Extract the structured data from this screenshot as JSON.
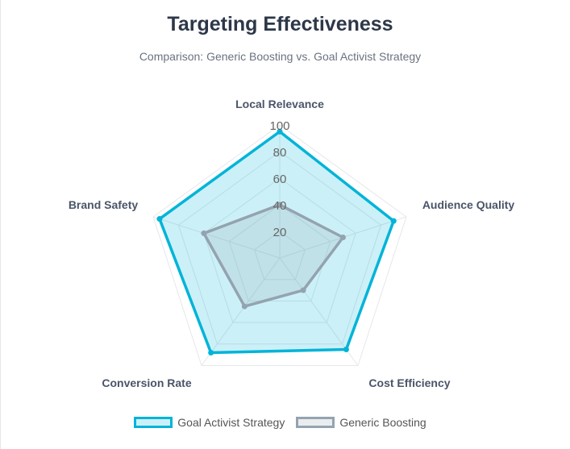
{
  "chart_data": {
    "type": "radar",
    "title": "Targeting Effectiveness",
    "subtitle": "Comparison: Generic Boosting vs. Goal Activist Strategy",
    "axes": [
      "Local Relevance",
      "Audience Quality",
      "Cost Efficiency",
      "Conversion Rate",
      "Brand Safety"
    ],
    "r_range": [
      0,
      100
    ],
    "r_ticks": [
      "20",
      "40",
      "60",
      "80",
      "100"
    ],
    "grid": true,
    "legend_position": "bottom",
    "series": [
      {
        "name": "Goal Activist Strategy",
        "values": [
          95,
          90,
          85,
          88,
          95
        ],
        "color": "#00b4d8",
        "fill": "rgba(0,180,216,0.2)"
      },
      {
        "name": "Generic Boosting",
        "values": [
          40,
          50,
          30,
          45,
          60
        ],
        "color": "#94a3b0",
        "fill": "rgba(148,163,176,0.2)"
      }
    ]
  }
}
